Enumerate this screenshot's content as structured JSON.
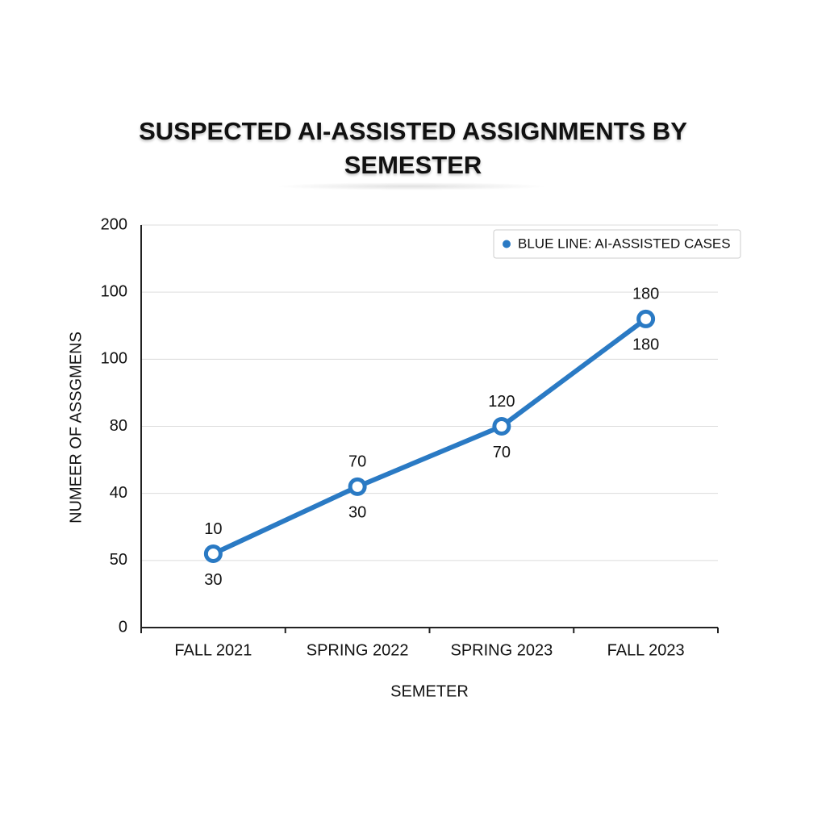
{
  "chart_data": {
    "type": "line",
    "title": "SUSPECTED AI-ASSISTED ASSIGNMENTS BY SEMESTER",
    "x_label": "SEMETER",
    "y_label": "NUMEER OF ASSGMENS",
    "categories": [
      "FALL 2021",
      "SPRING 2022",
      "SPRING 2023",
      "FALL 2023"
    ],
    "series": [
      {
        "name": "BLUE LINE: AI-ASSISTED CASES",
        "color": "#2a7ac4",
        "values": [
          1.1,
          2.1,
          3.0,
          4.6
        ],
        "value_labels": [
          "10",
          "70",
          "120",
          "180"
        ],
        "value_labels_below": [
          "30",
          "30",
          "70",
          "180"
        ]
      }
    ],
    "ylim": [
      0,
      6
    ],
    "yticks": [
      {
        "value": 0,
        "label": "0"
      },
      {
        "value": 1,
        "label": "50"
      },
      {
        "value": 2,
        "label": "40"
      },
      {
        "value": 3,
        "label": "80"
      },
      {
        "value": 4,
        "label": "100"
      },
      {
        "value": 5,
        "label": "100"
      },
      {
        "value": 6,
        "label": "200"
      }
    ],
    "grid": true,
    "legend": "top-right"
  }
}
